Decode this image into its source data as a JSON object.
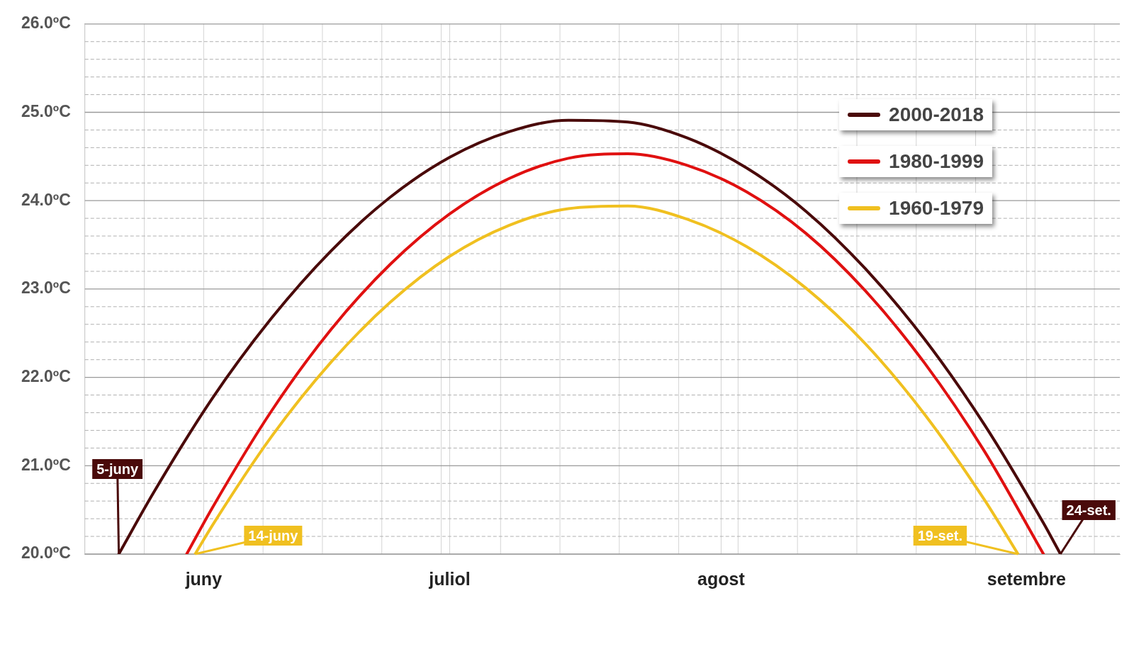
{
  "chart_data": {
    "type": "line",
    "xlim": [
      "--06-01",
      "--10-01"
    ],
    "xticks": [
      {
        "value": "--06-01",
        "label": null
      },
      {
        "value": "--06-08",
        "label": null
      },
      {
        "value": "--06-15",
        "label": "juny"
      },
      {
        "value": "--06-22",
        "label": null
      },
      {
        "value": "--06-29",
        "label": null
      },
      {
        "value": "--07-06",
        "label": null
      },
      {
        "value": "--07-13",
        "label": null
      },
      {
        "value": "--07-14",
        "label": "juliol"
      },
      {
        "value": "--07-20",
        "label": null
      },
      {
        "value": "--07-27",
        "label": null
      },
      {
        "value": "--08-03",
        "label": null
      },
      {
        "value": "--08-10",
        "label": null
      },
      {
        "value": "--08-15",
        "label": "agost"
      },
      {
        "value": "--08-17",
        "label": null
      },
      {
        "value": "--08-24",
        "label": null
      },
      {
        "value": "--08-31",
        "label": null
      },
      {
        "value": "--09-07",
        "label": null
      },
      {
        "value": "--09-14",
        "label": null
      },
      {
        "value": "--09-20",
        "label": "setembre"
      },
      {
        "value": "--09-21",
        "label": null
      },
      {
        "value": "--09-28",
        "label": null
      }
    ],
    "ylim": [
      20,
      26
    ],
    "yticks": [
      {
        "value": 20,
        "label": "20.0ºC"
      },
      {
        "value": 20.2,
        "label": null
      },
      {
        "value": 20.4,
        "label": null
      },
      {
        "value": 20.6,
        "label": null
      },
      {
        "value": 20.8,
        "label": null
      },
      {
        "value": 21,
        "label": "21.0ºC"
      },
      {
        "value": 21.2,
        "label": null
      },
      {
        "value": 21.4,
        "label": null
      },
      {
        "value": 21.6,
        "label": null
      },
      {
        "value": 21.8,
        "label": null
      },
      {
        "value": 22,
        "label": "22.0ºC"
      },
      {
        "value": 22.2,
        "label": null
      },
      {
        "value": 22.4,
        "label": null
      },
      {
        "value": 22.6,
        "label": null
      },
      {
        "value": 22.8,
        "label": null
      },
      {
        "value": 23,
        "label": "23.0ºC"
      },
      {
        "value": 23.2,
        "label": null
      },
      {
        "value": 23.4,
        "label": null
      },
      {
        "value": 23.6,
        "label": null
      },
      {
        "value": 23.8,
        "label": null
      },
      {
        "value": 24,
        "label": "24.0ºC"
      },
      {
        "value": 24.2,
        "label": null
      },
      {
        "value": 24.4,
        "label": null
      },
      {
        "value": 24.6,
        "label": null
      },
      {
        "value": 24.8,
        "label": null
      },
      {
        "value": 25,
        "label": "25.0ºC"
      },
      {
        "value": 25.2,
        "label": null
      },
      {
        "value": 25.4,
        "label": null
      },
      {
        "value": 25.6,
        "label": null
      },
      {
        "value": 25.8,
        "label": null
      },
      {
        "value": 26,
        "label": "26.0ºC"
      }
    ],
    "grid": true,
    "legend": "top right",
    "marker": "none",
    "line_style": "solid",
    "series": [
      {
        "name": "2000-2018",
        "color": "#4a0a0a",
        "x": [
          "--06-05",
          "--06-09",
          "--06-16",
          "--06-23",
          "--06-30",
          "--07-07",
          "--07-14",
          "--07-21",
          "--07-28",
          "--08-04",
          "--08-11",
          "--08-18",
          "--08-25",
          "--09-01",
          "--09-08",
          "--09-15",
          "--09-22",
          "--09-24"
        ],
        "values": [
          20.0,
          20.68,
          21.76,
          22.67,
          23.43,
          24.04,
          24.49,
          24.78,
          24.91,
          24.89,
          24.71,
          24.37,
          23.88,
          23.23,
          22.43,
          21.47,
          20.35,
          20.0
        ]
      },
      {
        "name": "1980-1999",
        "color": "#e01010",
        "x": [
          "--06-13",
          "--06-16",
          "--06-23",
          "--06-30",
          "--07-07",
          "--07-14",
          "--07-21",
          "--07-28",
          "--08-04",
          "--08-11",
          "--08-18",
          "--08-25",
          "--09-01",
          "--09-08",
          "--09-15",
          "--09-22"
        ],
        "values": [
          20.0,
          20.52,
          21.62,
          22.54,
          23.28,
          23.85,
          24.25,
          24.48,
          24.53,
          24.4,
          24.1,
          23.63,
          22.98,
          22.16,
          21.17,
          20.0
        ]
      },
      {
        "name": "1960-1979",
        "color": "#f0c020",
        "x": [
          "--06-14",
          "--06-16",
          "--06-23",
          "--06-30",
          "--07-07",
          "--07-14",
          "--07-21",
          "--07-28",
          "--08-04",
          "--08-11",
          "--08-18",
          "--08-25",
          "--09-01",
          "--09-08",
          "--09-15",
          "--09-19"
        ],
        "values": [
          20.0,
          20.32,
          21.33,
          22.17,
          22.85,
          23.37,
          23.72,
          23.91,
          23.94,
          23.79,
          23.48,
          23.01,
          22.38,
          21.58,
          20.62,
          20.0
        ]
      }
    ],
    "annotations": [
      {
        "text": "5-juny",
        "x": "--06-05",
        "y": 20
      },
      {
        "text": "14-juny",
        "x": "--06-14",
        "y": 20
      },
      {
        "text": "19-set.",
        "x": "--09-19",
        "y": 20
      },
      {
        "text": "24-set.",
        "x": "--09-24",
        "y": 20
      }
    ]
  }
}
